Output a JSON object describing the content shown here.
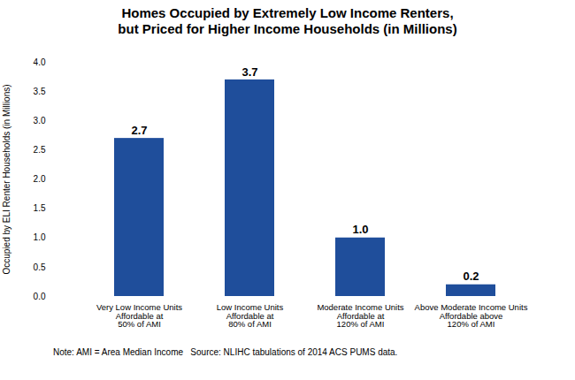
{
  "chart_data": {
    "type": "bar",
    "title": "Homes Occupied by Extremely Low Income Renters,\nbut Priced for Higher Income Households (in Millions)",
    "categories": [
      "Very Low Income Units\nAffordable at\n50% of AMI",
      "Low Income Units\nAffordable at\n80% of AMI",
      "Moderate Income Units\nAffordable at\n120% of AMI",
      "Above Moderate Income Units\nAffordable above\n120% of AMI"
    ],
    "values": [
      2.7,
      3.7,
      1.0,
      0.2
    ],
    "value_labels": [
      "2.7",
      "3.7",
      "1.0",
      "0.2"
    ],
    "data_labels": true,
    "color": "#1F4E9B",
    "ylabel": "Occupied by ELI Renter Households (in Millions)",
    "ylim": [
      0,
      4.0
    ],
    "yticks": [
      {
        "value": 0.0,
        "label": "0.0"
      },
      0.5,
      {
        "value": 1.0,
        "label": "1.0"
      },
      1.5,
      {
        "value": 2.0,
        "label": "2.0"
      },
      2.5,
      {
        "value": 3.0,
        "label": "3.0"
      },
      3.5,
      {
        "value": 4.0,
        "label": "4.0"
      }
    ],
    "grid": false,
    "note": "Note: AMI = Area Median Income   Source: NLIHC tabulations of 2014 ACS PUMS data."
  }
}
